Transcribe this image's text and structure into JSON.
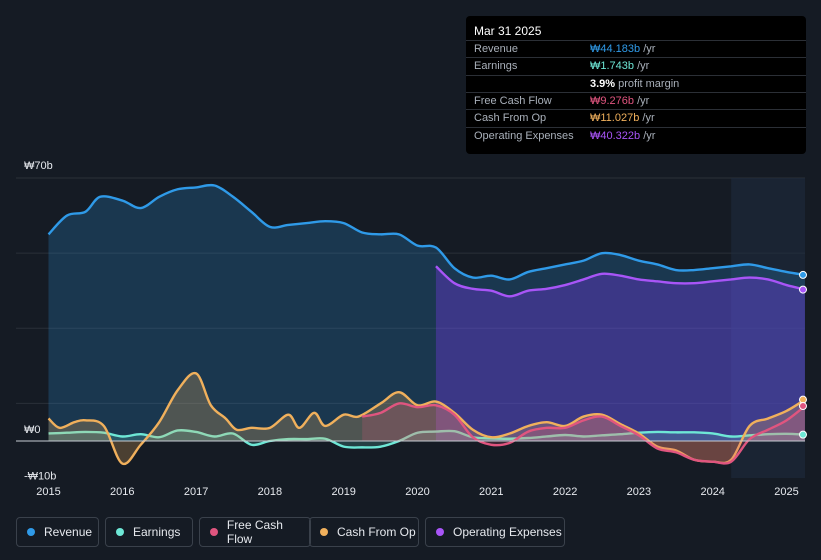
{
  "tooltip": {
    "date": "Mar 31 2025",
    "rows": [
      {
        "label": "Revenue",
        "value": "₩44.183b",
        "unit": " /yr",
        "color": "#2f9ae8"
      },
      {
        "label": "Earnings",
        "value": "₩1.743b",
        "unit": " /yr",
        "color": "#6ee7d6"
      },
      {
        "label": "",
        "value": "3.9%",
        "unit": " profit margin",
        "color": "#ffffff"
      },
      {
        "label": "Free Cash Flow",
        "value": "₩9.276b",
        "unit": " /yr",
        "color": "#e0557f"
      },
      {
        "label": "Cash From Op",
        "value": "₩11.027b",
        "unit": " /yr",
        "color": "#f0b05c"
      },
      {
        "label": "Operating Expenses",
        "value": "₩40.322b",
        "unit": " /yr",
        "color": "#a855f7"
      }
    ]
  },
  "legend": [
    {
      "label": "Revenue",
      "color": "#2f9ae8"
    },
    {
      "label": "Earnings",
      "color": "#6ee7d6"
    },
    {
      "label": "Free Cash Flow",
      "color": "#e0557f"
    },
    {
      "label": "Cash From Op",
      "color": "#f0b05c"
    },
    {
      "label": "Operating Expenses",
      "color": "#a855f7"
    }
  ],
  "chart_data": {
    "type": "area",
    "title": "",
    "xlabel": "",
    "ylabel": "",
    "y_labels": [
      "₩70b",
      "₩0",
      "-₩10b"
    ],
    "x_ticks": [
      "2015",
      "2016",
      "2017",
      "2018",
      "2019",
      "2020",
      "2021",
      "2022",
      "2023",
      "2024",
      "2025"
    ],
    "ylim": [
      -10,
      70
    ],
    "xlim": [
      2014.6,
      2025.3
    ],
    "forecast_start": 2024.25,
    "series": [
      {
        "name": "Revenue",
        "color": "#2f9ae8",
        "x": [
          2015.0,
          2015.25,
          2015.5,
          2015.7,
          2016.0,
          2016.25,
          2016.5,
          2016.75,
          2017.0,
          2017.25,
          2017.5,
          2017.75,
          2018.0,
          2018.25,
          2018.5,
          2018.75,
          2019.0,
          2019.25,
          2019.5,
          2019.75,
          2020.0,
          2020.25,
          2020.5,
          2020.75,
          2021.0,
          2021.25,
          2021.5,
          2021.75,
          2022.0,
          2022.25,
          2022.5,
          2022.75,
          2023.0,
          2023.25,
          2023.5,
          2023.75,
          2024.0,
          2024.25,
          2024.5,
          2024.75,
          2025.0,
          2025.25
        ],
        "values": [
          55,
          60,
          61,
          65,
          64,
          62,
          65,
          67,
          67.5,
          68,
          65,
          61,
          57,
          57.5,
          58,
          58.5,
          58,
          55.5,
          55,
          55,
          52,
          51.5,
          46,
          43.5,
          44,
          43,
          45,
          46,
          47,
          48,
          50,
          49.5,
          48,
          47,
          45.5,
          45.5,
          46,
          46.5,
          47,
          46,
          45,
          44.2
        ]
      },
      {
        "name": "Operating Expenses",
        "color": "#a855f7",
        "x": [
          2020.25,
          2020.5,
          2020.75,
          2021.0,
          2021.25,
          2021.5,
          2021.75,
          2022.0,
          2022.25,
          2022.5,
          2022.75,
          2023.0,
          2023.25,
          2023.5,
          2023.75,
          2024.0,
          2024.25,
          2024.5,
          2024.75,
          2025.0,
          2025.25
        ],
        "values": [
          46.5,
          42,
          40.5,
          40,
          38.5,
          40,
          40.5,
          41.5,
          43,
          44.5,
          44,
          43,
          42.5,
          42,
          42,
          42.5,
          43,
          43.5,
          43,
          41.5,
          40.3
        ]
      },
      {
        "name": "Earnings",
        "color": "#6ee7d6",
        "x": [
          2015.0,
          2015.25,
          2015.5,
          2015.75,
          2016.0,
          2016.25,
          2016.5,
          2016.75,
          2017.0,
          2017.25,
          2017.5,
          2017.75,
          2018.0,
          2018.25,
          2018.5,
          2018.75,
          2019.0,
          2019.25,
          2019.5,
          2019.75,
          2020.0,
          2020.25,
          2020.5,
          2020.75,
          2021.0,
          2021.25,
          2021.5,
          2021.75,
          2022.0,
          2022.25,
          2022.5,
          2022.75,
          2023.0,
          2023.25,
          2023.5,
          2023.75,
          2024.0,
          2024.25,
          2024.5,
          2024.75,
          2025.0,
          2025.25
        ],
        "values": [
          2,
          2.2,
          2.4,
          2.2,
          1.2,
          1.8,
          1,
          2.8,
          2.4,
          1.2,
          2,
          -1,
          0,
          0.5,
          0.5,
          0.6,
          -1.5,
          -1.7,
          -1.5,
          0,
          2.2,
          2.5,
          2.6,
          1,
          0.7,
          0.6,
          0.8,
          1.2,
          1.6,
          1.2,
          1.5,
          1.8,
          2.2,
          2.4,
          2.3,
          2.3,
          2.0,
          1.2,
          1.5,
          1.8,
          1.9,
          1.7
        ]
      },
      {
        "name": "Cash From Op",
        "color": "#f0b05c",
        "x": [
          2015.0,
          2015.15,
          2015.35,
          2015.5,
          2015.75,
          2016.0,
          2016.25,
          2016.5,
          2016.75,
          2017.0,
          2017.2,
          2017.4,
          2017.55,
          2017.75,
          2018.0,
          2018.25,
          2018.4,
          2018.6,
          2018.75,
          2019.0,
          2019.2,
          2019.5,
          2019.75,
          2020.0,
          2020.25,
          2020.5,
          2020.75,
          2021.0,
          2021.25,
          2021.5,
          2021.75,
          2022.0,
          2022.25,
          2022.5,
          2022.75,
          2023.0,
          2023.25,
          2023.5,
          2023.75,
          2024.0,
          2024.25,
          2024.5,
          2024.75,
          2025.0,
          2025.25
        ],
        "values": [
          6,
          3.5,
          5,
          5.5,
          4,
          -6,
          -1,
          5,
          13.5,
          18,
          9.5,
          6,
          3,
          3.5,
          3.5,
          7,
          3.5,
          7.5,
          4,
          7,
          6.5,
          10,
          13,
          9.5,
          10.5,
          7.5,
          3,
          1,
          2,
          4,
          5,
          4,
          6.5,
          7,
          4.5,
          2,
          -1.5,
          -2.5,
          -5,
          -5.5,
          -5,
          4,
          6,
          8,
          11
        ]
      },
      {
        "name": "Free Cash Flow",
        "color": "#e0557f",
        "x": [
          2019.25,
          2019.5,
          2019.75,
          2020.0,
          2020.25,
          2020.5,
          2020.75,
          2021.0,
          2021.25,
          2021.5,
          2021.75,
          2022.0,
          2022.25,
          2022.5,
          2022.75,
          2023.0,
          2023.25,
          2023.5,
          2023.75,
          2024.0,
          2024.25,
          2024.5,
          2024.75,
          2025.0,
          2025.25
        ],
        "values": [
          6.5,
          7.5,
          10,
          9,
          9.5,
          7,
          1,
          -1,
          -0.5,
          2.5,
          3.5,
          3.5,
          5.5,
          6.5,
          4,
          1.5,
          -2,
          -3,
          -5,
          -5.5,
          -5.5,
          0.5,
          3,
          5.5,
          9.3
        ]
      }
    ]
  }
}
